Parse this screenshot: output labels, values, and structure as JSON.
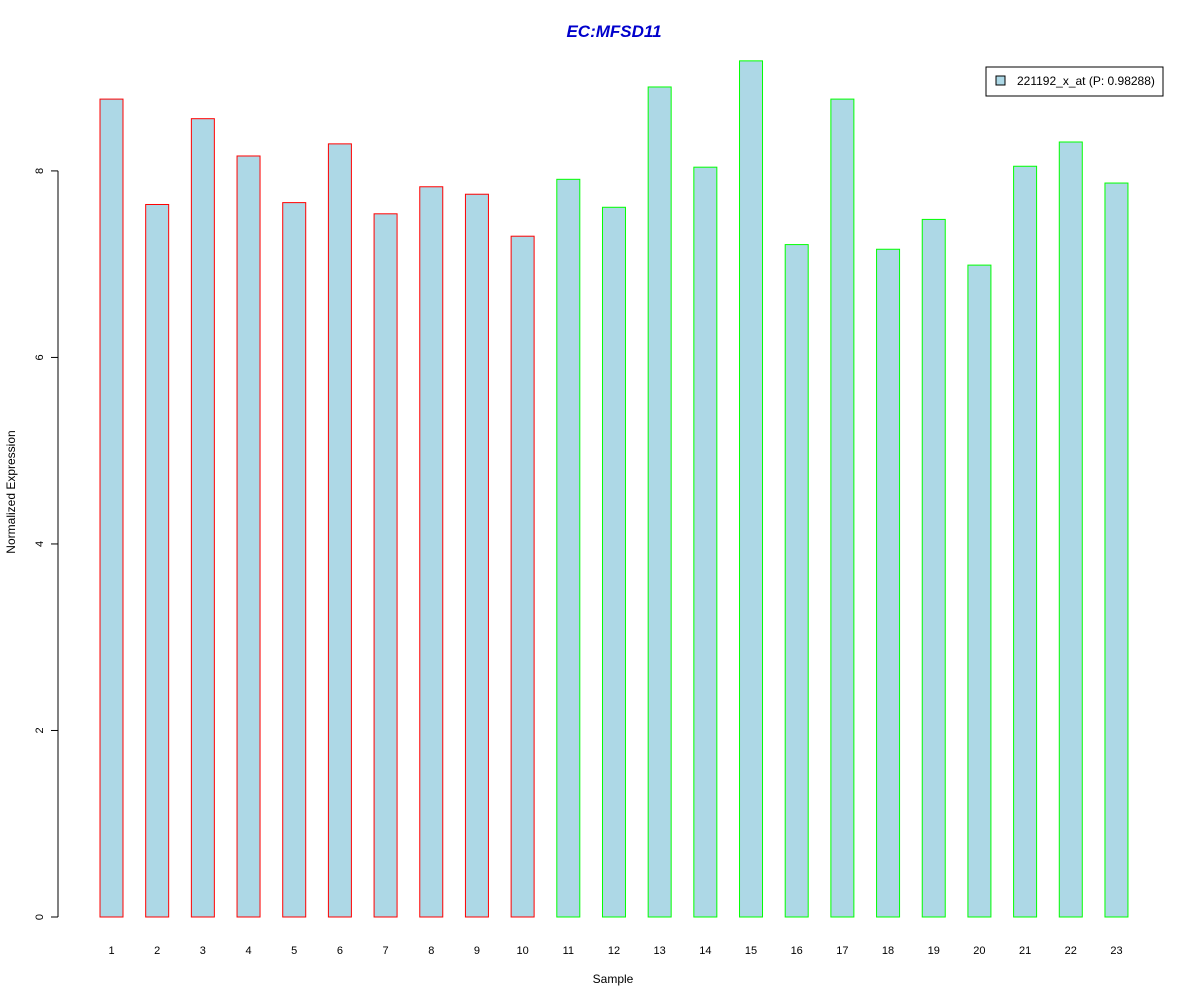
{
  "chart_data": {
    "type": "bar",
    "title": "EC:MFSD11",
    "title_color": "#0000CC",
    "xlabel": "Sample",
    "ylabel": "Normalized Expression",
    "categories": [
      "1",
      "2",
      "3",
      "4",
      "5",
      "6",
      "7",
      "8",
      "9",
      "10",
      "11",
      "12",
      "13",
      "14",
      "15",
      "16",
      "17",
      "18",
      "19",
      "20",
      "21",
      "22",
      "23"
    ],
    "series": [
      {
        "name": "221192_x_at (P: 0.98288)",
        "values": [
          8.77,
          7.64,
          8.56,
          8.16,
          7.66,
          8.29,
          7.54,
          7.83,
          7.75,
          7.3,
          7.91,
          7.61,
          8.9,
          8.04,
          9.18,
          7.21,
          8.77,
          7.16,
          7.48,
          6.99,
          8.05,
          8.31,
          7.87
        ],
        "fill": "#ADD8E6",
        "outlines": [
          "#FF0000",
          "#FF0000",
          "#FF0000",
          "#FF0000",
          "#FF0000",
          "#FF0000",
          "#FF0000",
          "#FF0000",
          "#FF0000",
          "#FF0000",
          "#00FF00",
          "#00FF00",
          "#00FF00",
          "#00FF00",
          "#00FF00",
          "#00FF00",
          "#00FF00",
          "#00FF00",
          "#00FF00",
          "#00FF00",
          "#00FF00",
          "#00FF00",
          "#00FF00"
        ]
      }
    ],
    "ylim": [
      0,
      9.2
    ],
    "yticks": [
      0,
      2,
      4,
      6,
      8
    ],
    "ytick_labels": [
      "0",
      "2",
      "4",
      "6",
      "8"
    ],
    "grid": false,
    "legend_position": "top-right"
  }
}
